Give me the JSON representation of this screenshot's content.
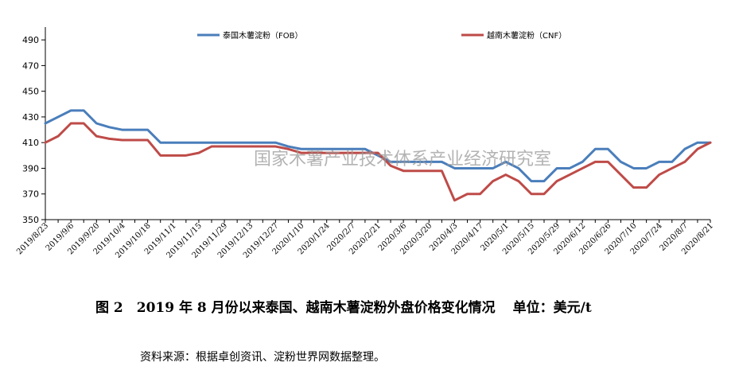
{
  "chart_data": {
    "type": "line",
    "title": "",
    "xlabel": "",
    "ylabel": "",
    "ylim": [
      350,
      500
    ],
    "yticks": [
      350,
      370,
      390,
      410,
      430,
      450,
      470,
      490
    ],
    "grid": false,
    "legend_placement": "top",
    "categories": [
      "2019/8/23",
      "2019/8/30",
      "2019/9/6",
      "2019/9/13",
      "2019/9/20",
      "2019/9/27",
      "2019/10/4",
      "2019/10/11",
      "2019/10/18",
      "2019/10/25",
      "2019/11/1",
      "2019/11/8",
      "2019/11/15",
      "2019/11/22",
      "2019/11/29",
      "2019/12/6",
      "2019/12/13",
      "2019/12/20",
      "2019/12/27",
      "2020/1/3",
      "2020/1/10",
      "2020/1/17",
      "2020/1/24",
      "2020/1/31",
      "2020/2/7",
      "2020/2/14",
      "2020/2/21",
      "2020/2/28",
      "2020/3/6",
      "2020/3/13",
      "2020/3/20",
      "2020/3/27",
      "2020/4/3",
      "2020/4/10",
      "2020/4/17",
      "2020/4/24",
      "2020/5/1",
      "2020/5/8",
      "2020/5/15",
      "2020/5/22",
      "2020/5/29",
      "2020/6/5",
      "2020/6/12",
      "2020/6/19",
      "2020/6/26",
      "2020/7/3",
      "2020/7/10",
      "2020/7/17",
      "2020/7/24",
      "2020/7/31",
      "2020/8/7",
      "2020/8/14",
      "2020/8/21"
    ],
    "tick_labels": [
      "2019/8/23",
      "2019/9/6",
      "2019/9/20",
      "2019/10/4",
      "2019/10/18",
      "2019/11/1",
      "2019/11/15",
      "2019/11/29",
      "2019/12/13",
      "2019/12/27",
      "2020/1/10",
      "2020/1/24",
      "2020/2/7",
      "2020/2/21",
      "2020/3/6",
      "2020/3/20",
      "2020/4/3",
      "2020/4/17",
      "2020/5/1",
      "2020/5/15",
      "2020/5/29",
      "2020/6/12",
      "2020/6/26",
      "2020/7/10",
      "2020/7/24",
      "2020/8/7",
      "2020/8/21"
    ],
    "series": [
      {
        "name": "泰国木薯淀粉（FOB）",
        "color": "#4a7ebb",
        "values": [
          425,
          430,
          435,
          435,
          425,
          422,
          420,
          420,
          420,
          410,
          410,
          410,
          410,
          410,
          410,
          410,
          410,
          410,
          410,
          407,
          405,
          405,
          405,
          405,
          405,
          405,
          400,
          395,
          395,
          395,
          395,
          395,
          390,
          390,
          390,
          390,
          395,
          390,
          380,
          380,
          390,
          390,
          395,
          405,
          405,
          395,
          390,
          390,
          395,
          395,
          405,
          410,
          410
        ]
      },
      {
        "name": "越南木薯淀粉（CNF）",
        "color": "#be4b48",
        "values": [
          410,
          415,
          425,
          425,
          415,
          413,
          412,
          412,
          412,
          400,
          400,
          400,
          402,
          407,
          407,
          407,
          407,
          407,
          407,
          405,
          402,
          402,
          402,
          402,
          402,
          402,
          402,
          392,
          388,
          388,
          388,
          388,
          365,
          370,
          370,
          380,
          385,
          380,
          370,
          370,
          380,
          385,
          390,
          395,
          395,
          385,
          375,
          375,
          385,
          390,
          395,
          405,
          410
        ]
      }
    ]
  },
  "watermark": "国家木薯产业技术体系产业经济研究室",
  "caption": {
    "text": "图 2　2019 年 8 月份以来泰国、越南木薯淀粉外盘价格变化情况",
    "unit": "单位：美元/t"
  },
  "source": "资料来源：根据卓创资讯、淀粉世界网数据整理。"
}
